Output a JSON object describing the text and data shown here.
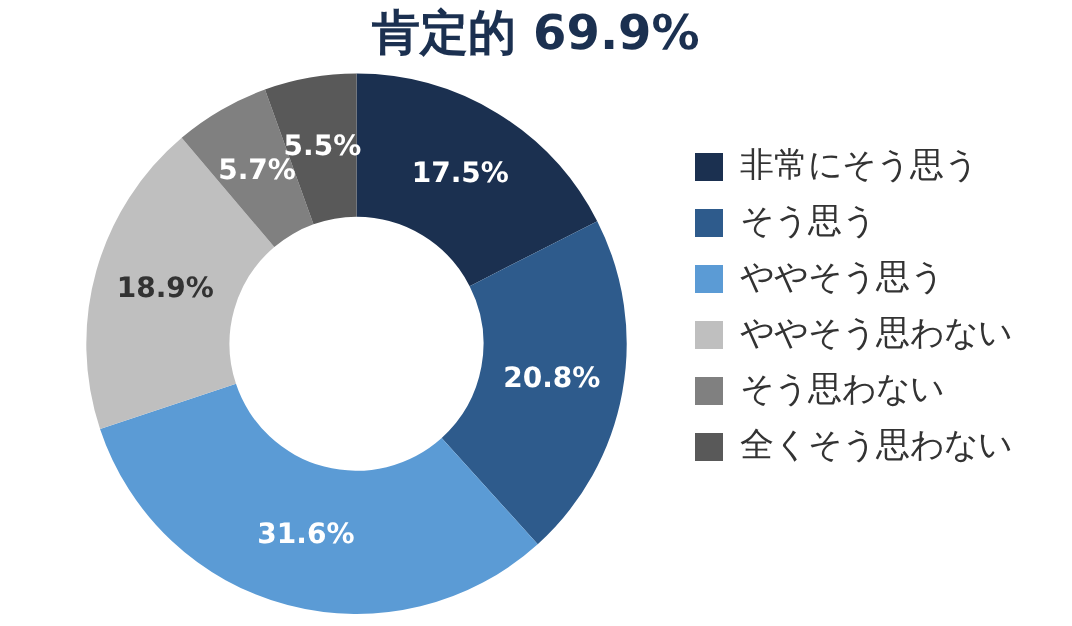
{
  "chart_data": {
    "type": "donut",
    "title": "肯定的 69.9%",
    "categories": [
      "非常にそう思う",
      "そう思う",
      "ややそう思う",
      "ややそう思わない",
      "そう思わない",
      "全くそう思わない"
    ],
    "values": [
      17.5,
      20.8,
      31.6,
      18.9,
      5.7,
      5.5
    ],
    "colors": [
      "#1b3050",
      "#2e5b8c",
      "#5b9bd5",
      "#bfbfbf",
      "#808080",
      "#595959"
    ],
    "value_labels": [
      "17.5%",
      "20.8%",
      "31.6%",
      "18.9%",
      "5.7%",
      "5.5%"
    ],
    "legend": "right"
  }
}
